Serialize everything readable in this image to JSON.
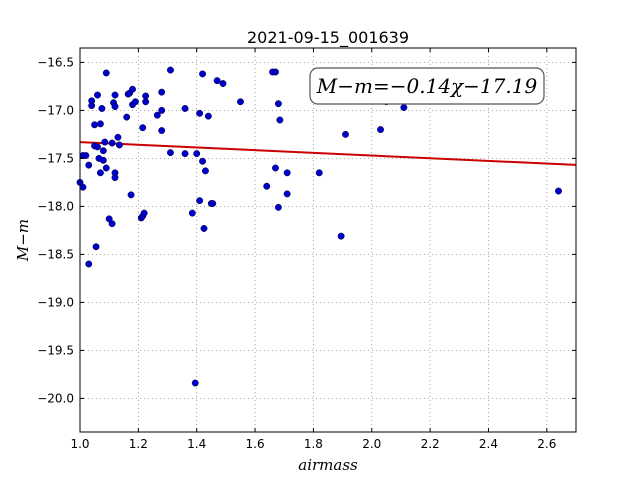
{
  "chart_data": {
    "type": "scatter",
    "title": "2021-09-15_001639",
    "xlabel": "airmass",
    "ylabel": "M−m",
    "xlim": [
      1.0,
      2.7
    ],
    "ylim": [
      -20.35,
      -16.35
    ],
    "xticks": [
      1.0,
      1.2,
      1.4,
      1.6,
      1.8,
      2.0,
      2.2,
      2.4,
      2.6
    ],
    "xtick_labels": [
      "1.0",
      "1.2",
      "1.4",
      "1.6",
      "1.8",
      "2.0",
      "2.2",
      "2.4",
      "2.6"
    ],
    "yticks": [
      -16.5,
      -17.0,
      -17.5,
      -18.0,
      -18.5,
      -19.0,
      -19.5,
      -20.0
    ],
    "ytick_labels": [
      "−16.5",
      "−17.0",
      "−17.5",
      "−18.0",
      "−18.5",
      "−19.0",
      "−19.5",
      "−20.0"
    ],
    "grid": true,
    "annotation": "M−m=−0.14χ−17.19",
    "annotation_position": "top-right",
    "marker_color": "#0000cc",
    "fit_color": "#cc0000",
    "fit": {
      "slope": -0.14,
      "intercept": -17.19,
      "x_range": [
        1.0,
        2.7
      ]
    },
    "points": [
      {
        "x": 1.0,
        "y": -17.75
      },
      {
        "x": 1.01,
        "y": -17.8
      },
      {
        "x": 1.01,
        "y": -17.47
      },
      {
        "x": 1.02,
        "y": -17.47
      },
      {
        "x": 1.03,
        "y": -17.57
      },
      {
        "x": 1.03,
        "y": -18.6
      },
      {
        "x": 1.04,
        "y": -16.95
      },
      {
        "x": 1.04,
        "y": -16.9
      },
      {
        "x": 1.05,
        "y": -17.15
      },
      {
        "x": 1.05,
        "y": -17.37
      },
      {
        "x": 1.055,
        "y": -18.42
      },
      {
        "x": 1.06,
        "y": -16.84
      },
      {
        "x": 1.06,
        "y": -17.38
      },
      {
        "x": 1.065,
        "y": -17.5
      },
      {
        "x": 1.07,
        "y": -17.65
      },
      {
        "x": 1.07,
        "y": -17.14
      },
      {
        "x": 1.075,
        "y": -16.98
      },
      {
        "x": 1.08,
        "y": -17.42
      },
      {
        "x": 1.08,
        "y": -17.52
      },
      {
        "x": 1.085,
        "y": -17.33
      },
      {
        "x": 1.09,
        "y": -16.61
      },
      {
        "x": 1.09,
        "y": -17.6
      },
      {
        "x": 1.1,
        "y": -18.13
      },
      {
        "x": 1.11,
        "y": -18.18
      },
      {
        "x": 1.11,
        "y": -17.34
      },
      {
        "x": 1.115,
        "y": -16.92
      },
      {
        "x": 1.12,
        "y": -16.84
      },
      {
        "x": 1.12,
        "y": -16.96
      },
      {
        "x": 1.12,
        "y": -17.65
      },
      {
        "x": 1.12,
        "y": -17.7
      },
      {
        "x": 1.13,
        "y": -17.28
      },
      {
        "x": 1.135,
        "y": -17.36
      },
      {
        "x": 1.16,
        "y": -17.07
      },
      {
        "x": 1.165,
        "y": -16.83
      },
      {
        "x": 1.17,
        "y": -16.82
      },
      {
        "x": 1.175,
        "y": -17.88
      },
      {
        "x": 1.18,
        "y": -16.78
      },
      {
        "x": 1.18,
        "y": -16.94
      },
      {
        "x": 1.19,
        "y": -16.91
      },
      {
        "x": 1.21,
        "y": -18.12
      },
      {
        "x": 1.215,
        "y": -18.1
      },
      {
        "x": 1.22,
        "y": -18.07
      },
      {
        "x": 1.215,
        "y": -17.18
      },
      {
        "x": 1.225,
        "y": -16.85
      },
      {
        "x": 1.225,
        "y": -16.91
      },
      {
        "x": 1.265,
        "y": -17.05
      },
      {
        "x": 1.28,
        "y": -16.81
      },
      {
        "x": 1.28,
        "y": -17.0
      },
      {
        "x": 1.28,
        "y": -17.21
      },
      {
        "x": 1.31,
        "y": -16.58
      },
      {
        "x": 1.31,
        "y": -17.44
      },
      {
        "x": 1.36,
        "y": -16.98
      },
      {
        "x": 1.36,
        "y": -17.45
      },
      {
        "x": 1.385,
        "y": -18.07
      },
      {
        "x": 1.395,
        "y": -19.84
      },
      {
        "x": 1.4,
        "y": -17.45
      },
      {
        "x": 1.41,
        "y": -17.03
      },
      {
        "x": 1.41,
        "y": -17.94
      },
      {
        "x": 1.42,
        "y": -16.62
      },
      {
        "x": 1.42,
        "y": -17.53
      },
      {
        "x": 1.425,
        "y": -18.23
      },
      {
        "x": 1.43,
        "y": -17.63
      },
      {
        "x": 1.44,
        "y": -17.06
      },
      {
        "x": 1.45,
        "y": -17.97
      },
      {
        "x": 1.455,
        "y": -17.97
      },
      {
        "x": 1.47,
        "y": -16.69
      },
      {
        "x": 1.49,
        "y": -16.72
      },
      {
        "x": 1.55,
        "y": -16.91
      },
      {
        "x": 1.64,
        "y": -17.79
      },
      {
        "x": 1.66,
        "y": -16.6
      },
      {
        "x": 1.67,
        "y": -16.6
      },
      {
        "x": 1.67,
        "y": -17.6
      },
      {
        "x": 1.68,
        "y": -18.01
      },
      {
        "x": 1.68,
        "y": -16.93
      },
      {
        "x": 1.685,
        "y": -17.1
      },
      {
        "x": 1.71,
        "y": -17.65
      },
      {
        "x": 1.71,
        "y": -17.87
      },
      {
        "x": 1.82,
        "y": -17.65
      },
      {
        "x": 1.895,
        "y": -18.31
      },
      {
        "x": 1.91,
        "y": -17.25
      },
      {
        "x": 2.03,
        "y": -17.2
      },
      {
        "x": 2.05,
        "y": -16.91
      },
      {
        "x": 2.11,
        "y": -16.97
      },
      {
        "x": 2.64,
        "y": -17.84
      }
    ]
  }
}
